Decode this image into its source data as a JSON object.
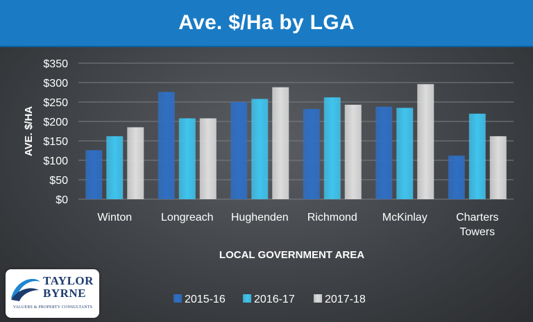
{
  "header": {
    "title": "Ave. $/Ha by LGA"
  },
  "chart_data": {
    "type": "bar",
    "title": "Ave. $/Ha by LGA",
    "xlabel": "LOCAL GOVERNMENT AREA",
    "ylabel": "AVE. $/HA",
    "ylim": [
      0,
      350
    ],
    "yticks": [
      "$0",
      "$50",
      "$100",
      "$150",
      "$200",
      "$250",
      "$300",
      "$350"
    ],
    "categories": [
      [
        "Winton"
      ],
      [
        "Longreach"
      ],
      [
        "Hughenden"
      ],
      [
        "Richmond"
      ],
      [
        "McKinlay"
      ],
      [
        "Charters",
        "Towers"
      ]
    ],
    "series": [
      {
        "name": "2015-16",
        "color": "#2f6fc4",
        "values": [
          126,
          276,
          250,
          232,
          238,
          112
        ]
      },
      {
        "name": "2016-17",
        "color": "#3fc4ee",
        "values": [
          162,
          208,
          258,
          262,
          235,
          220
        ]
      },
      {
        "name": "2017-18",
        "color": "#dcdcdc",
        "values": [
          185,
          208,
          288,
          243,
          296,
          162
        ]
      }
    ],
    "grid": true,
    "legend_position": "bottom"
  },
  "logo": {
    "name_line1": "TAYLOR",
    "name_line2": "BYRNE",
    "tagline": "VALUERS & PROPERTY CONSULTANTS",
    "colors": {
      "navy": "#1c3c6e",
      "blue": "#1f86d1"
    }
  }
}
